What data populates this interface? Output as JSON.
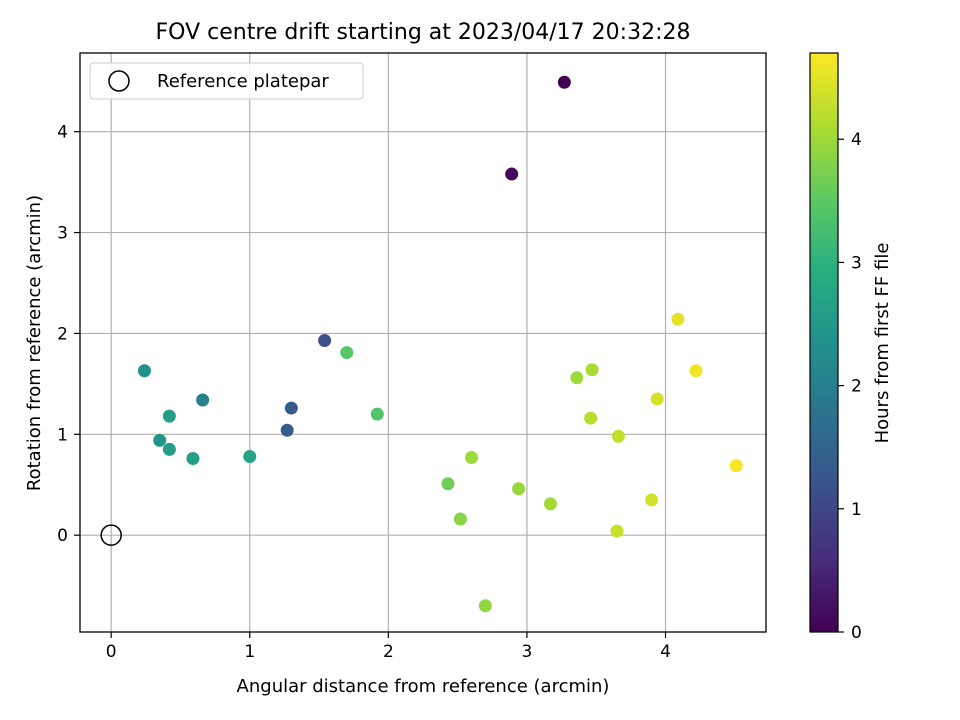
{
  "chart_data": {
    "type": "scatter",
    "title": "FOV centre drift starting at 2023/04/17 20:32:28",
    "xlabel": "Angular distance from reference (arcmin)",
    "ylabel": "Rotation from reference (arcmin)",
    "xlim": [
      -0.225,
      4.725
    ],
    "ylim": [
      -0.96,
      4.78
    ],
    "xticks": [
      0,
      1,
      2,
      3,
      4
    ],
    "yticks": [
      0,
      1,
      2,
      3,
      4
    ],
    "grid": true,
    "legend": {
      "placement": "upper-left",
      "entries": [
        "Reference platepar"
      ]
    },
    "reference_point": {
      "x": 0,
      "y": 0
    },
    "colorbar": {
      "label": "Hours from first FF file",
      "range": [
        0,
        4.7
      ],
      "ticks": [
        0,
        1,
        2,
        3,
        4
      ],
      "colormap": "viridis"
    },
    "points": [
      {
        "x": 3.27,
        "y": 4.49,
        "c": 0.0
      },
      {
        "x": 2.89,
        "y": 3.58,
        "c": 0.1
      },
      {
        "x": 1.54,
        "y": 1.93,
        "c": 1.15
      },
      {
        "x": 1.3,
        "y": 1.26,
        "c": 1.35
      },
      {
        "x": 1.27,
        "y": 1.04,
        "c": 1.4
      },
      {
        "x": 0.66,
        "y": 1.34,
        "c": 2.05
      },
      {
        "x": 0.24,
        "y": 1.63,
        "c": 2.35
      },
      {
        "x": 0.35,
        "y": 0.94,
        "c": 2.45
      },
      {
        "x": 0.42,
        "y": 1.18,
        "c": 2.6
      },
      {
        "x": 0.42,
        "y": 0.85,
        "c": 2.6
      },
      {
        "x": 0.59,
        "y": 0.76,
        "c": 2.65
      },
      {
        "x": 1.0,
        "y": 0.78,
        "c": 2.75
      },
      {
        "x": 1.92,
        "y": 1.2,
        "c": 3.4
      },
      {
        "x": 1.7,
        "y": 1.81,
        "c": 3.45
      },
      {
        "x": 2.43,
        "y": 0.51,
        "c": 3.65
      },
      {
        "x": 2.52,
        "y": 0.16,
        "c": 3.85
      },
      {
        "x": 2.6,
        "y": 0.77,
        "c": 4.0
      },
      {
        "x": 2.7,
        "y": -0.7,
        "c": 3.9
      },
      {
        "x": 2.94,
        "y": 0.46,
        "c": 3.95
      },
      {
        "x": 3.17,
        "y": 0.31,
        "c": 4.05
      },
      {
        "x": 3.36,
        "y": 1.56,
        "c": 4.0
      },
      {
        "x": 3.47,
        "y": 1.64,
        "c": 4.1
      },
      {
        "x": 3.46,
        "y": 1.16,
        "c": 4.2
      },
      {
        "x": 3.66,
        "y": 0.98,
        "c": 4.25
      },
      {
        "x": 3.65,
        "y": 0.04,
        "c": 4.3
      },
      {
        "x": 3.9,
        "y": 0.35,
        "c": 4.4
      },
      {
        "x": 3.94,
        "y": 1.35,
        "c": 4.4
      },
      {
        "x": 4.09,
        "y": 2.14,
        "c": 4.5
      },
      {
        "x": 4.22,
        "y": 1.63,
        "c": 4.6
      },
      {
        "x": 4.51,
        "y": 0.69,
        "c": 4.65
      }
    ]
  }
}
